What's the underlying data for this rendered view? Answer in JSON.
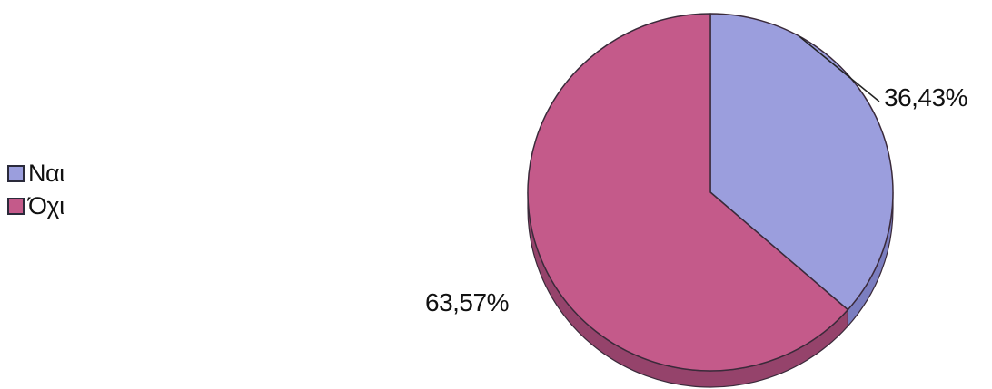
{
  "chart_data": {
    "type": "pie",
    "style": "3d",
    "title": "",
    "categories": [
      "Ναι",
      "Όχι"
    ],
    "values": [
      36.43,
      63.57
    ],
    "data_labels": [
      "36,43%",
      "63,57%"
    ],
    "colors": [
      "#9b9edd",
      "#c45a8a"
    ],
    "side_colors": [
      "#7b7ec0",
      "#95436b"
    ],
    "legend_position": "left"
  }
}
